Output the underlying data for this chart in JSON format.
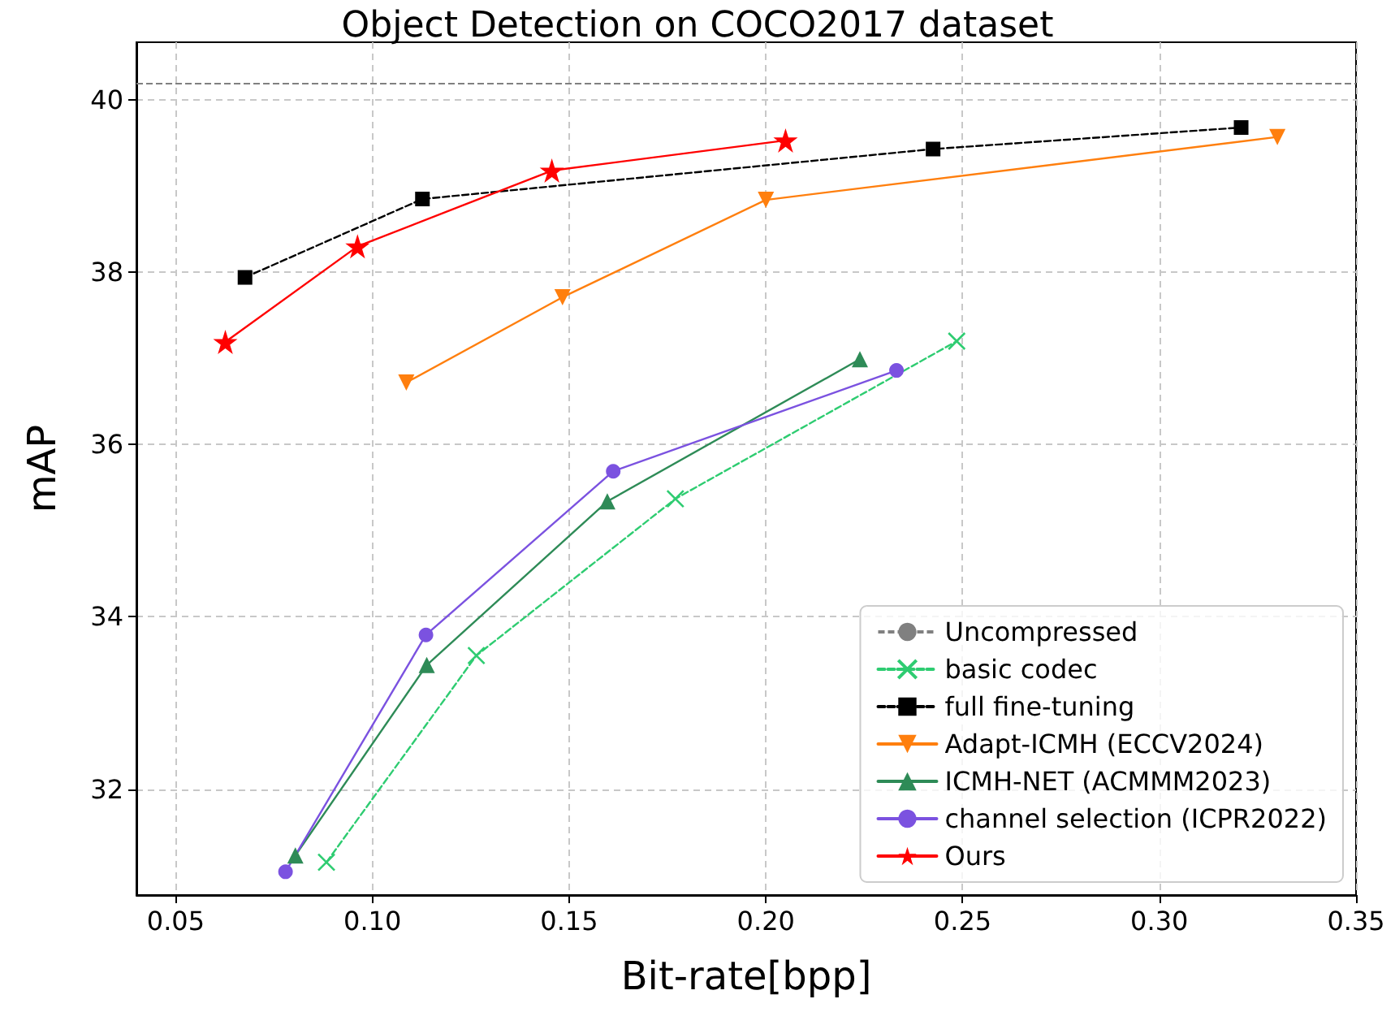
{
  "chart_data": {
    "type": "line",
    "title": "Object Detection on COCO2017 dataset",
    "xlabel": "Bit-rate[bpp]",
    "ylabel": "mAP",
    "xlim": [
      0.04,
      0.35
    ],
    "ylim": [
      30.77,
      40.67
    ],
    "xticks": [
      0.05,
      {
        "value": 0.1,
        "label": "0.10"
      },
      0.15,
      {
        "value": 0.2,
        "label": "0.20"
      },
      0.25,
      {
        "value": 0.3,
        "label": "0.30"
      },
      0.35
    ],
    "yticks": [
      32,
      34,
      36,
      38,
      40
    ],
    "grid": true,
    "legend": "bottom right",
    "ref_lines": [
      {
        "axis": "y",
        "value": 40.2,
        "label": "Uncompressed",
        "color": "#808080",
        "line_style": "dashed"
      }
    ],
    "series": [
      {
        "name": "basic codec",
        "color": "#2ecc71",
        "marker": "cross",
        "line_style": "dashed",
        "x": [
          0.0883,
          0.1264,
          0.177,
          0.2485
        ],
        "values": [
          31.15,
          33.55,
          35.37,
          37.2
        ]
      },
      {
        "name": "full fine-tuning",
        "color": "#000000",
        "marker": "square",
        "line_style": "dashed",
        "x": [
          0.0676,
          0.1127,
          0.2425,
          0.3208
        ],
        "values": [
          37.94,
          38.85,
          39.43,
          39.68
        ]
      },
      {
        "name": "Adapt-ICMH (ECCV2024)",
        "color": "#ff7f0e",
        "marker": "triangle_down",
        "line_style": "solid",
        "x": [
          0.1086,
          0.1483,
          0.2,
          0.33
        ],
        "values": [
          36.72,
          37.71,
          38.84,
          39.57
        ]
      },
      {
        "name": "ICMH-NET (ACMMM2023)",
        "color": "#2e8b57",
        "marker": "triangle",
        "line_style": "solid",
        "x": [
          0.0804,
          0.1138,
          0.1597,
          0.2239
        ],
        "values": [
          31.23,
          33.44,
          35.34,
          36.99
        ]
      },
      {
        "name": "channel selection (ICPR2022)",
        "color": "#7b52e0",
        "marker": "circle",
        "line_style": "solid",
        "x": [
          0.0779,
          0.1136,
          0.1612,
          0.2332
        ],
        "values": [
          31.04,
          33.79,
          35.69,
          36.86
        ]
      },
      {
        "name": "Ours",
        "color": "#ff0000",
        "marker": "star",
        "line_style": "solid",
        "x": [
          0.0626,
          0.0962,
          0.1456,
          0.205
        ],
        "values": [
          37.19,
          38.3,
          39.18,
          39.53
        ]
      }
    ]
  }
}
